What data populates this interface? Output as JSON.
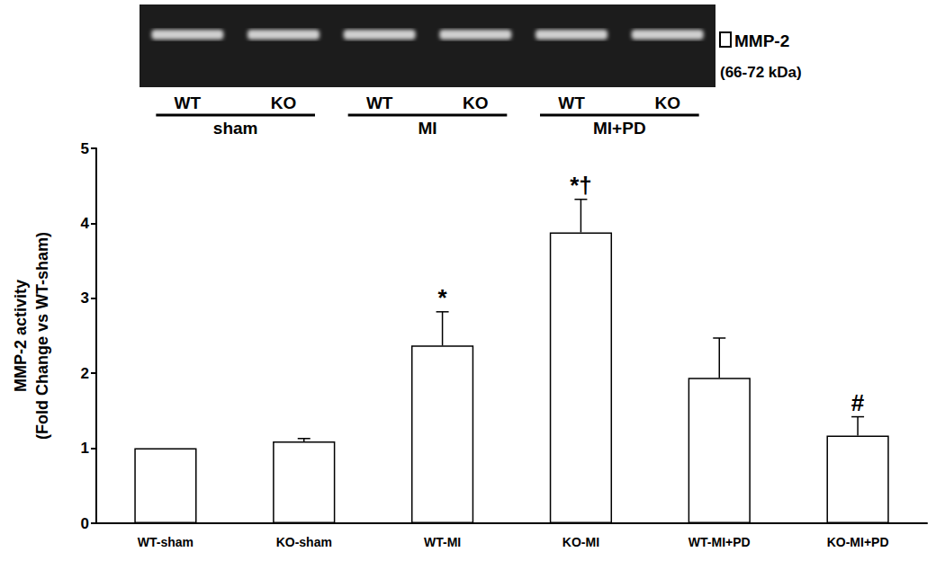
{
  "chart_data": {
    "type": "bar",
    "categories": [
      "WT-sham",
      "KO-sham",
      "WT-MI",
      "KO-MI",
      "WT-MI+PD",
      "KO-MI+PD"
    ],
    "values": [
      1.0,
      1.09,
      2.37,
      3.88,
      1.94,
      1.17
    ],
    "errors": [
      null,
      0.04,
      0.45,
      0.44,
      0.53,
      0.25
    ],
    "annotations": [
      null,
      null,
      "*",
      "*†",
      null,
      "#"
    ],
    "color": "#ffffff",
    "y_label": [
      "MMP-2 activity",
      "(Fold Change vs WT-sham)"
    ],
    "ylim": [
      0,
      5
    ],
    "yticks": [
      0,
      1,
      2,
      3,
      4,
      5
    ],
    "grid": false
  },
  "blot": {
    "lanes": [
      "WT",
      "KO",
      "WT",
      "KO",
      "WT",
      "KO"
    ],
    "groups": [
      "sham",
      "MI",
      "MI+PD"
    ],
    "band_label": "MMP-2",
    "band_size": "(66-72 kDa)"
  }
}
